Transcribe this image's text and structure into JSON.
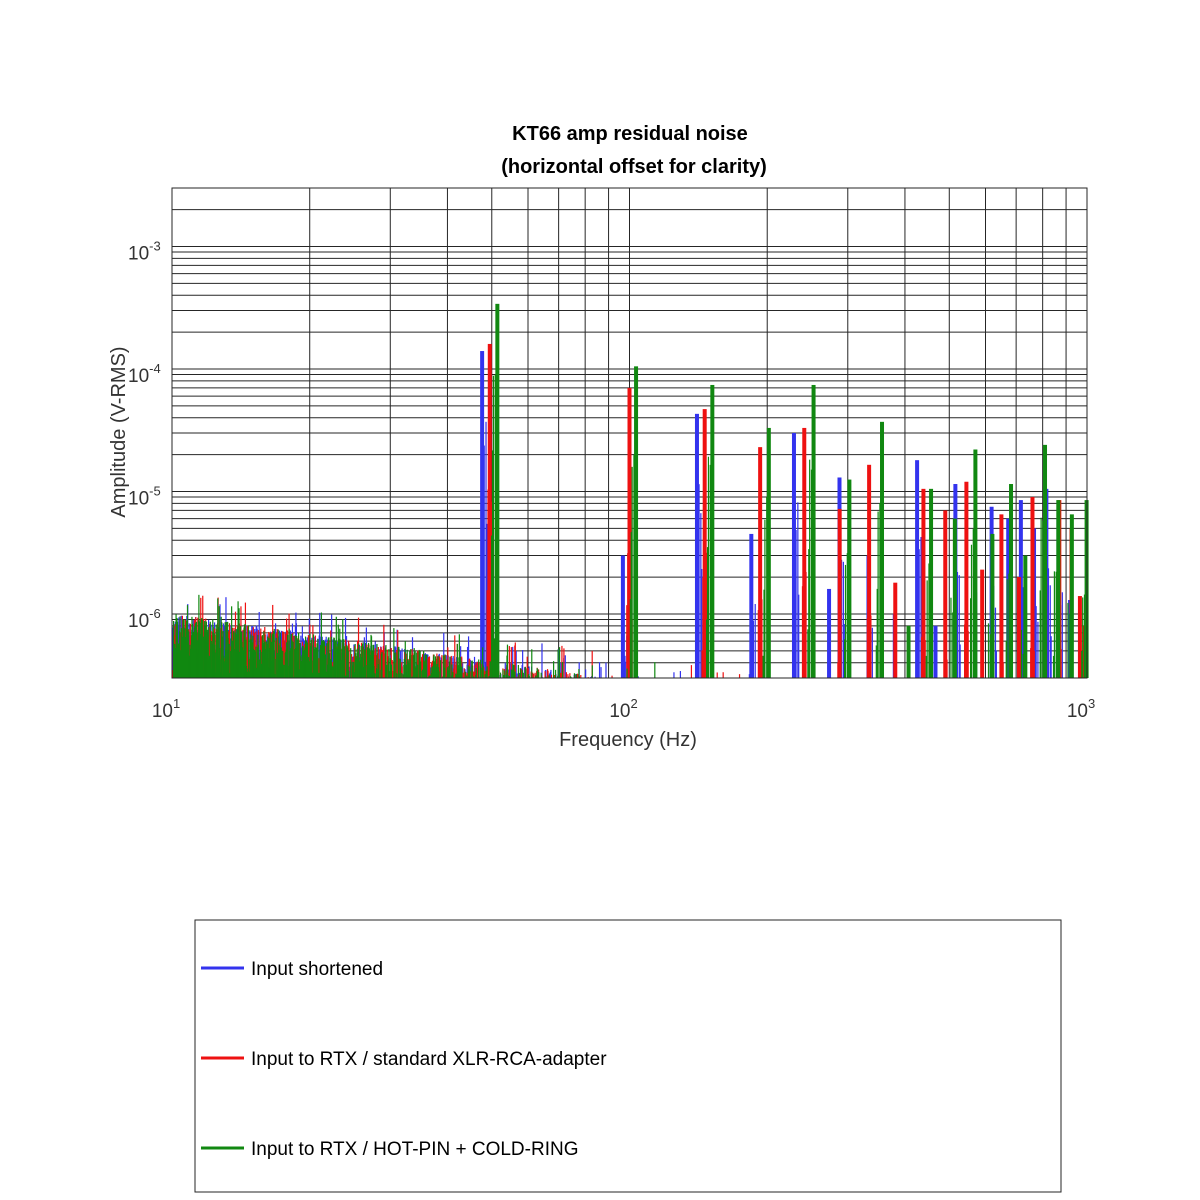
{
  "chart_data": {
    "type": "bar",
    "title": "KT66 amp residual noise",
    "subtitle": "(horizontal offset for clarity)",
    "xlabel": "Frequency (Hz)",
    "ylabel": "Amplitude (V-RMS)",
    "x_scale": "log",
    "y_scale": "log",
    "xlim": [
      10,
      1000
    ],
    "ylim": [
      3e-07,
      0.003
    ],
    "grid": true,
    "legend_position": "below plot",
    "x_ticks": [
      {
        "base": "10",
        "exp": "1"
      },
      {
        "base": "10",
        "exp": "2"
      },
      {
        "base": "10",
        "exp": "3"
      }
    ],
    "y_ticks": [
      {
        "base": "10",
        "exp": "-6",
        "value": 1e-06
      },
      {
        "base": "10",
        "exp": "-5",
        "value": 1e-05
      },
      {
        "base": "10",
        "exp": "-4",
        "value": 0.0001
      },
      {
        "base": "10",
        "exp": "-3",
        "value": 0.001
      }
    ],
    "series": [
      {
        "name": "Input shortened",
        "color": "#3333ee",
        "harmonics": [
          [
            48.5,
            0.00014
          ],
          [
            98.5,
            3e-06
          ],
          [
            143,
            4.3e-05
          ],
          [
            188,
            4.5e-06
          ],
          [
            233,
            3e-05
          ],
          [
            278,
            1.6e-06
          ],
          [
            293,
            1.3e-05
          ],
          [
            339,
            3e-06
          ],
          [
            387,
            1e-06
          ],
          [
            433,
            1.8e-05
          ],
          [
            475,
            8e-07
          ],
          [
            525,
            1.15e-05
          ],
          [
            580,
            1.5e-06
          ],
          [
            630,
            7.5e-06
          ],
          [
            685,
            6e-06
          ],
          [
            730,
            8.5e-06
          ],
          [
            780,
            5e-06
          ],
          [
            830,
            1.05e-05
          ],
          [
            882,
            6e-06
          ],
          [
            935,
            1.3e-06
          ]
        ]
      },
      {
        "name": "Input to RTX / standard XLR-RCA-adapter",
        "color": "#ee1111",
        "harmonics": [
          [
            49.5,
            0.00016
          ],
          [
            100,
            7e-05
          ],
          [
            146,
            4.7e-05
          ],
          [
            193,
            2.3e-05
          ],
          [
            241,
            3.3e-05
          ],
          [
            288,
            7.2e-06
          ],
          [
            334,
            1.65e-05
          ],
          [
            381,
            1.8e-06
          ],
          [
            439,
            1.05e-05
          ],
          [
            490,
            7e-06
          ],
          [
            545,
            1.2e-05
          ],
          [
            590,
            2.3e-06
          ],
          [
            650,
            6.5e-06
          ],
          [
            710,
            2e-06
          ],
          [
            760,
            9e-06
          ],
          [
            810,
            2e-06
          ],
          [
            870,
            8.5e-06
          ],
          [
            925,
            5e-06
          ],
          [
            965,
            1.4e-06
          ],
          [
            990,
            8e-07
          ]
        ]
      },
      {
        "name": "Input to RTX / HOT-PIN + COLD-RING",
        "color": "#118811",
        "harmonics": [
          [
            50.5,
            0.00034
          ],
          [
            101.5,
            0.000105
          ],
          [
            149,
            7.4e-05
          ],
          [
            198,
            3.3e-05
          ],
          [
            248,
            7.4e-05
          ],
          [
            297,
            1.25e-05
          ],
          [
            350,
            3.7e-05
          ],
          [
            400,
            8e-07
          ],
          [
            448,
            1.05e-05
          ],
          [
            505,
            6e-06
          ],
          [
            560,
            2.2e-05
          ],
          [
            610,
            4.5e-06
          ],
          [
            670,
            1.15e-05
          ],
          [
            720,
            3e-06
          ],
          [
            795,
            2.4e-05
          ],
          [
            850,
            8.5e-06
          ],
          [
            910,
            6.5e-06
          ],
          [
            980,
            8.5e-06
          ]
        ]
      }
    ]
  }
}
